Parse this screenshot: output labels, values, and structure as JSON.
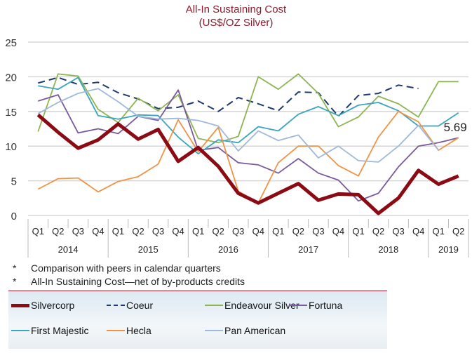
{
  "chart_data": {
    "type": "line",
    "title": "All-In Sustaining Cost",
    "subtitle": "(US$/OZ Silver)",
    "ylim": [
      0,
      25
    ],
    "yticks": [
      0,
      5,
      10,
      15,
      20,
      25
    ],
    "grid": true,
    "legend_placement": "bottom",
    "categories": [
      "Q1",
      "Q2",
      "Q3",
      "Q4",
      "Q1",
      "Q2",
      "Q3",
      "Q4",
      "Q1",
      "Q2",
      "Q3",
      "Q4",
      "Q1",
      "Q2",
      "Q3",
      "Q4",
      "Q1",
      "Q2",
      "Q3",
      "Q4",
      "Q1",
      "Q2"
    ],
    "years": [
      {
        "label": "2014",
        "quarters": 4
      },
      {
        "label": "2015",
        "quarters": 4
      },
      {
        "label": "2016",
        "quarters": 4
      },
      {
        "label": "2017",
        "quarters": 4
      },
      {
        "label": "2018",
        "quarters": 4
      },
      {
        "label": "2019",
        "quarters": 2
      }
    ],
    "series": [
      {
        "name": "Silvercorp",
        "color": "#8b0a14",
        "width": 5,
        "dash": "",
        "values": [
          14.5,
          12,
          9.7,
          10.9,
          13.2,
          11,
          12.4,
          7.8,
          9.8,
          7.1,
          3.2,
          1.8,
          3.2,
          4.6,
          2.2,
          3.1,
          3.0,
          0.3,
          2.5,
          6.5,
          4.5,
          5.69
        ]
      },
      {
        "name": "Coeur",
        "color": "#1f3a6e",
        "width": 2,
        "dash": "10,6",
        "values": [
          19.1,
          19.9,
          18.9,
          19.2,
          17.7,
          16.8,
          15.4,
          15.6,
          16.5,
          15.0,
          17.0,
          16.1,
          15.1,
          17.8,
          17.7,
          14.3,
          17.3,
          17.6,
          18.8,
          18.3,
          null,
          null
        ]
      },
      {
        "name": "Endeavour Silver",
        "color": "#8db552",
        "width": 1.8,
        "dash": "",
        "values": [
          12.1,
          20.4,
          20.1,
          15.3,
          13.4,
          16.9,
          15.1,
          17.4,
          11.1,
          10.5,
          11.4,
          20.0,
          18.2,
          20.4,
          17.6,
          12.8,
          14.2,
          17.2,
          16.1,
          14.2,
          19.3,
          19.3
        ]
      },
      {
        "name": "Fortuna",
        "color": "#7a5a9c",
        "width": 1.8,
        "dash": "",
        "values": [
          16.5,
          17.4,
          11.9,
          12.5,
          11.8,
          14.3,
          13.7,
          18.1,
          9.4,
          9.8,
          7.6,
          7.3,
          6.1,
          8.2,
          6.1,
          5.1,
          2.1,
          3.2,
          7.0,
          10.0,
          10.5,
          11.2
        ]
      },
      {
        "name": "First Majestic",
        "color": "#3aa5bd",
        "width": 1.8,
        "dash": "",
        "values": [
          18.7,
          18.2,
          19.9,
          14.4,
          13.9,
          14.5,
          14.4,
          11.3,
          8.9,
          10.9,
          10.5,
          12.8,
          12.2,
          14.6,
          15.7,
          14.4,
          15.9,
          16.3,
          15.1,
          12.9,
          12.9,
          14.8
        ]
      },
      {
        "name": "Hecla",
        "color": "#ef9446",
        "width": 1.8,
        "dash": "",
        "values": [
          3.8,
          5.3,
          5.4,
          3.4,
          4.9,
          5.6,
          7.4,
          13.8,
          9.2,
          12.7,
          3.5,
          1.8,
          7.6,
          10.0,
          10.0,
          7.2,
          5.7,
          11.3,
          15.0,
          13.5,
          9.4,
          11.2
        ]
      },
      {
        "name": "Pan American",
        "color": "#9fb8dc",
        "width": 1.8,
        "dash": "",
        "values": [
          14.7,
          16.3,
          17.6,
          18.3,
          16.4,
          14.3,
          13.9,
          14.0,
          13.7,
          12.9,
          9.3,
          12.2,
          10.8,
          11.6,
          8.3,
          10.0,
          7.9,
          7.7,
          10.0,
          13.0,
          9.4,
          null
        ]
      }
    ],
    "annotations": [
      {
        "text": "5.69",
        "series": "Silvercorp",
        "category_index": 21
      }
    ]
  },
  "notes": [
    {
      "marker": "*",
      "text": "Comparison with peers in calendar quarters"
    },
    {
      "marker": "*",
      "text": "All-In Sustaining Cost—net of by-products credits"
    }
  ]
}
